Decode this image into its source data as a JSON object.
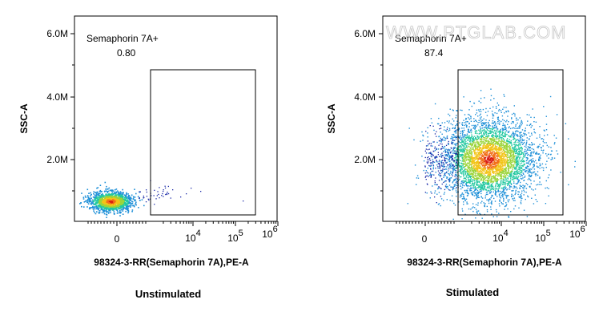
{
  "watermark": "WWW.PTGLAB.COM",
  "chart_data": [
    {
      "type": "scatter",
      "title": "Unstimulated",
      "xlabel": "98324-3-RR(Semaphorin 7A),PE-A",
      "ylabel": "SSC-A",
      "x_scale": "biexponential",
      "y_scale": "linear",
      "x_tick_labels": [
        "0",
        "10^4",
        "10^5",
        "10^6"
      ],
      "y_tick_labels": [
        "2.0M",
        "4.0M",
        "6.0M"
      ],
      "ylim": [
        0,
        6500000
      ],
      "grid": false,
      "gate": {
        "name": "Semaphorin 7A+",
        "percent": "0.80",
        "x_range": [
          1000,
          700000
        ],
        "y_range": [
          200000,
          4800000
        ]
      },
      "population": {
        "center_x": -200,
        "center_y": 650000,
        "shape": "compact cluster near zero fluorescence"
      }
    },
    {
      "type": "scatter",
      "title": "Stimulated",
      "xlabel": "98324-3-RR(Semaphorin 7A),PE-A",
      "ylabel": "SSC-A",
      "x_scale": "biexponential",
      "y_scale": "linear",
      "x_tick_labels": [
        "0",
        "10^4",
        "10^5",
        "10^6"
      ],
      "y_tick_labels": [
        "2.0M",
        "4.0M",
        "6.0M"
      ],
      "ylim": [
        0,
        6500000
      ],
      "grid": false,
      "gate": {
        "name": "Semaphorin 7A+",
        "percent": "87.4",
        "x_range": [
          1000,
          700000
        ],
        "y_range": [
          200000,
          4800000
        ]
      },
      "population": {
        "center_x": 5000,
        "center_y": 2000000,
        "shape": "broad cloud shifted to positive fluorescence"
      }
    }
  ]
}
